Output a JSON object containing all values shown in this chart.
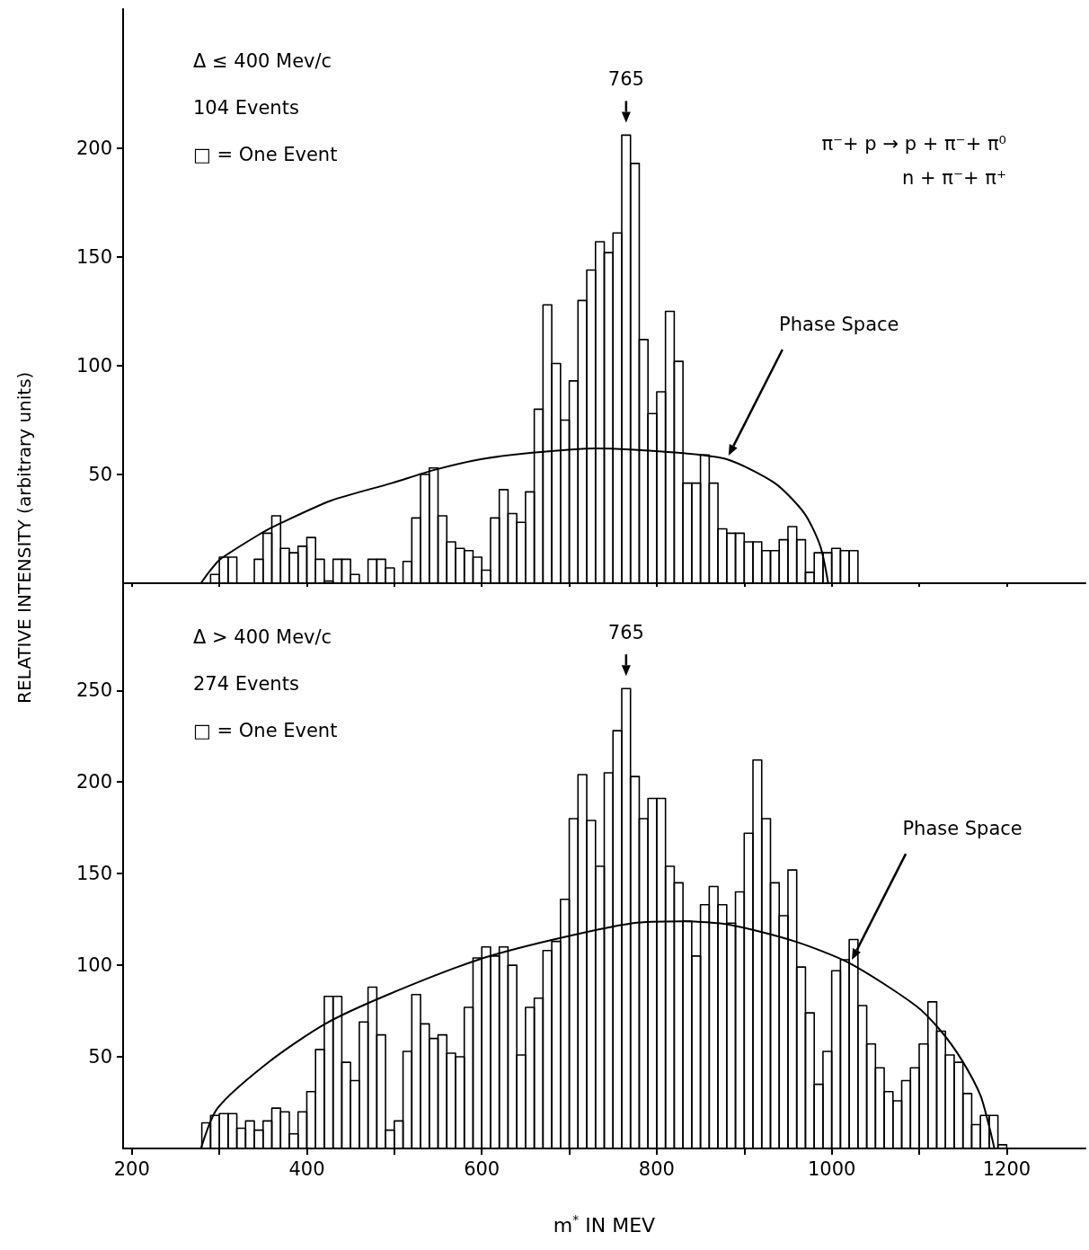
{
  "chart_data": [
    {
      "type": "histogram",
      "ylabel": "RELATIVE INTENSITY (arbitrary units)",
      "xlim": [
        190,
        1290
      ],
      "xticks": [
        {
          "value": 200,
          "label": null
        },
        {
          "value": 300,
          "label": null
        },
        {
          "value": 400,
          "label": null
        },
        {
          "value": 500,
          "label": null
        },
        {
          "value": 600,
          "label": null
        },
        {
          "value": 700,
          "label": null
        },
        {
          "value": 800,
          "label": null
        },
        {
          "value": 900,
          "label": null
        },
        {
          "value": 1000,
          "label": null
        },
        {
          "value": 1100,
          "label": null
        },
        {
          "value": 1200,
          "label": null
        }
      ],
      "ylim": [
        0,
        264
      ],
      "yticks": [
        50,
        100,
        150,
        200
      ],
      "tick_labels": "y",
      "marker": "none",
      "annotations": [
        "Δ ≤ 400 Mev/c",
        "104 Events",
        "□ = One Event",
        {
          "text": "765",
          "x": 765,
          "y": 206
        },
        "π⁻+ p → p + π⁻+ π⁰",
        "n + π⁻+ π⁺"
      ],
      "series": [
        {
          "color": "#000000",
          "bins": [
            290,
            300,
            310,
            320,
            330,
            340,
            350,
            360,
            370,
            380,
            390,
            400,
            410,
            420,
            430,
            440,
            450,
            460,
            470,
            480,
            490,
            500,
            510,
            520,
            530,
            540,
            550,
            560,
            570,
            580,
            590,
            600,
            610,
            620,
            630,
            640,
            650,
            660,
            670,
            680,
            690,
            700,
            710,
            720,
            730,
            740,
            750,
            760,
            770,
            780,
            790,
            800,
            810,
            820,
            830,
            840,
            850,
            860,
            870,
            880,
            890,
            900,
            910,
            920,
            930,
            940,
            950,
            960,
            970,
            980,
            990,
            1000,
            1010,
            1020,
            1030
          ],
          "values": [
            4,
            12,
            12,
            0,
            0,
            11,
            23,
            31,
            16,
            14,
            17,
            21,
            11,
            1,
            11,
            11,
            4,
            0,
            11,
            11,
            7,
            0,
            10,
            30,
            50,
            53,
            31,
            19,
            16,
            15,
            12,
            6,
            30,
            43,
            32,
            28,
            42,
            80,
            128,
            101,
            75,
            93,
            130,
            144,
            157,
            152,
            161,
            206,
            193,
            112,
            78,
            88,
            125,
            102,
            46,
            46,
            59,
            46,
            25,
            23,
            23,
            19,
            19,
            15,
            15,
            20,
            26,
            20,
            5,
            14,
            14,
            16,
            15,
            15
          ]
        },
        {
          "type": "line",
          "name": "Phase Space",
          "color": "#000000",
          "x": [
            279,
            288,
            301,
            348,
            367,
            428,
            497,
            545,
            599,
            658,
            730,
            824,
            880,
            935,
            969,
            987,
            996
          ],
          "values": [
            0,
            5,
            11,
            23,
            27,
            38,
            46,
            52,
            57,
            60,
            62,
            60,
            57,
            46,
            32,
            17,
            0
          ]
        }
      ]
    },
    {
      "type": "histogram",
      "xlabel": "m$^{*}$ IN MEV",
      "xlim": [
        190,
        1290
      ],
      "xticks": [
        200,
        {
          "value": 300,
          "label": null
        },
        400,
        {
          "value": 500,
          "label": null
        },
        600,
        {
          "value": 700,
          "label": null
        },
        800,
        {
          "value": 900,
          "label": null
        },
        1000,
        {
          "value": 1100,
          "label": null
        },
        1200
      ],
      "ylim": [
        0,
        308
      ],
      "yticks": [
        50,
        100,
        150,
        200,
        250
      ],
      "marker": "none",
      "annotations": [
        "Δ > 400 Mev/c",
        "274 Events",
        "□ = One Event",
        {
          "text": "765",
          "x": 765,
          "y": 251
        }
      ],
      "series": [
        {
          "color": "#000000",
          "bins": [
            280,
            290,
            300,
            310,
            320,
            330,
            340,
            350,
            360,
            370,
            380,
            390,
            400,
            410,
            420,
            430,
            440,
            450,
            460,
            470,
            480,
            490,
            500,
            510,
            520,
            530,
            540,
            550,
            560,
            570,
            580,
            590,
            600,
            610,
            620,
            630,
            640,
            650,
            660,
            670,
            680,
            690,
            700,
            710,
            720,
            730,
            740,
            750,
            760,
            770,
            780,
            790,
            800,
            810,
            820,
            830,
            840,
            850,
            860,
            870,
            880,
            890,
            900,
            910,
            920,
            930,
            940,
            950,
            960,
            970,
            980,
            990,
            1000,
            1010,
            1020,
            1030,
            1040,
            1050,
            1060,
            1070,
            1080,
            1090,
            1100,
            1110,
            1120,
            1130,
            1140,
            1150,
            1160,
            1170,
            1180,
            1190,
            1200
          ],
          "values": [
            14,
            18,
            19,
            19,
            11,
            15,
            10,
            15,
            22,
            20,
            8,
            20,
            31,
            54,
            83,
            83,
            47,
            37,
            69,
            88,
            62,
            10,
            15,
            53,
            84,
            68,
            60,
            62,
            52,
            50,
            77,
            104,
            110,
            105,
            110,
            100,
            51,
            77,
            82,
            108,
            113,
            136,
            180,
            204,
            179,
            154,
            205,
            228,
            251,
            203,
            180,
            191,
            191,
            154,
            145,
            124,
            105,
            133,
            143,
            133,
            123,
            140,
            172,
            212,
            180,
            145,
            127,
            152,
            99,
            74,
            35,
            53,
            97,
            103,
            114,
            78,
            57,
            44,
            31,
            26,
            37,
            44,
            57,
            80,
            64,
            51,
            47,
            30,
            13,
            18,
            18,
            2
          ]
        },
        {
          "type": "line",
          "name": "Phase Space",
          "color": "#000000",
          "x": [
            279,
            298,
            356,
            421,
            493,
            596,
            682,
            773,
            830,
            884,
            958,
            1021,
            1096,
            1125,
            1149,
            1170,
            1180,
            1186
          ],
          "values": [
            0,
            22,
            47,
            68,
            84,
            103,
            114,
            123,
            124,
            122,
            113,
            101,
            78,
            64,
            48,
            29,
            12,
            0
          ]
        }
      ]
    }
  ]
}
